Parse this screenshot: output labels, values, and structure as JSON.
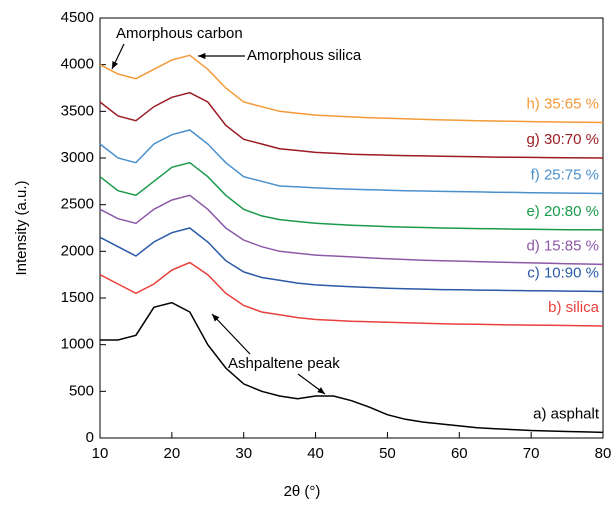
{
  "chart_data": {
    "type": "line",
    "xlabel": "2θ (°)",
    "ylabel": "Intensity (a.u.)",
    "xlim": [
      10,
      80
    ],
    "ylim": [
      0,
      4500
    ],
    "xticks": [
      10,
      20,
      30,
      40,
      50,
      60,
      70,
      80
    ],
    "yticks": [
      0,
      500,
      1000,
      1500,
      2000,
      2500,
      3000,
      3500,
      4000,
      4500
    ],
    "x": [
      10,
      12.5,
      15,
      17.5,
      20,
      22.5,
      25,
      27.5,
      30,
      32.5,
      35,
      37.5,
      40,
      42.5,
      45,
      47.5,
      50,
      52.5,
      55,
      57.5,
      60,
      62.5,
      65,
      67.5,
      70,
      72.5,
      75,
      77.5,
      80
    ],
    "series": [
      {
        "name": "a) asphalt",
        "color": "#000000",
        "values": [
          1050,
          1050,
          1100,
          1400,
          1450,
          1350,
          1000,
          750,
          580,
          500,
          450,
          420,
          450,
          450,
          400,
          330,
          250,
          200,
          170,
          150,
          130,
          110,
          100,
          90,
          80,
          75,
          70,
          65,
          60
        ]
      },
      {
        "name": "b) silica",
        "color": "#e8413c",
        "values": [
          1750,
          1650,
          1550,
          1650,
          1800,
          1880,
          1750,
          1550,
          1420,
          1350,
          1320,
          1290,
          1270,
          1260,
          1250,
          1245,
          1240,
          1235,
          1230,
          1225,
          1220,
          1218,
          1215,
          1212,
          1210,
          1207,
          1205,
          1202,
          1200
        ]
      },
      {
        "name": "c) 10:90 %",
        "color": "#2a5aa8",
        "values": [
          2150,
          2050,
          1950,
          2100,
          2200,
          2250,
          2100,
          1900,
          1780,
          1720,
          1690,
          1660,
          1640,
          1630,
          1620,
          1612,
          1605,
          1600,
          1595,
          1590,
          1588,
          1585,
          1583,
          1580,
          1578,
          1576,
          1574,
          1572,
          1570
        ]
      },
      {
        "name": "d) 15:85 %",
        "color": "#8c59a8",
        "values": [
          2450,
          2350,
          2300,
          2450,
          2550,
          2600,
          2450,
          2250,
          2120,
          2050,
          2000,
          1980,
          1960,
          1950,
          1940,
          1930,
          1920,
          1912,
          1905,
          1900,
          1895,
          1890,
          1885,
          1880,
          1876,
          1872,
          1868,
          1864,
          1860
        ]
      },
      {
        "name": "e) 20:80 %",
        "color": "#1a9a4a",
        "values": [
          2800,
          2650,
          2600,
          2750,
          2900,
          2950,
          2800,
          2600,
          2450,
          2380,
          2340,
          2320,
          2300,
          2290,
          2280,
          2272,
          2265,
          2260,
          2255,
          2250,
          2247,
          2244,
          2241,
          2238,
          2236,
          2234,
          2232,
          2231,
          2230
        ]
      },
      {
        "name": "f) 25:75 %",
        "color": "#4a90cc",
        "values": [
          3150,
          3000,
          2950,
          3150,
          3250,
          3300,
          3150,
          2950,
          2800,
          2750,
          2700,
          2690,
          2680,
          2672,
          2665,
          2660,
          2655,
          2650,
          2646,
          2642,
          2640,
          2637,
          2634,
          2631,
          2628,
          2626,
          2624,
          2622,
          2620
        ]
      },
      {
        "name": "g) 30:70 %",
        "color": "#9c1c24",
        "values": [
          3600,
          3450,
          3400,
          3550,
          3650,
          3700,
          3600,
          3350,
          3200,
          3150,
          3100,
          3080,
          3060,
          3050,
          3040,
          3035,
          3030,
          3026,
          3022,
          3019,
          3016,
          3013,
          3010,
          3008,
          3006,
          3004,
          3003,
          3001,
          3000
        ]
      },
      {
        "name": "h) 35:65 %",
        "color": "#f39a3a",
        "values": [
          4000,
          3900,
          3850,
          3950,
          4050,
          4100,
          3950,
          3750,
          3600,
          3550,
          3500,
          3480,
          3460,
          3450,
          3440,
          3432,
          3425,
          3420,
          3414,
          3408,
          3404,
          3400,
          3396,
          3393,
          3390,
          3387,
          3385,
          3382,
          3380
        ]
      }
    ],
    "annotations": [
      {
        "text": "Amorphous carbon"
      },
      {
        "text": "Amorphous silica"
      },
      {
        "text": "Ashpaltene peak"
      }
    ]
  }
}
